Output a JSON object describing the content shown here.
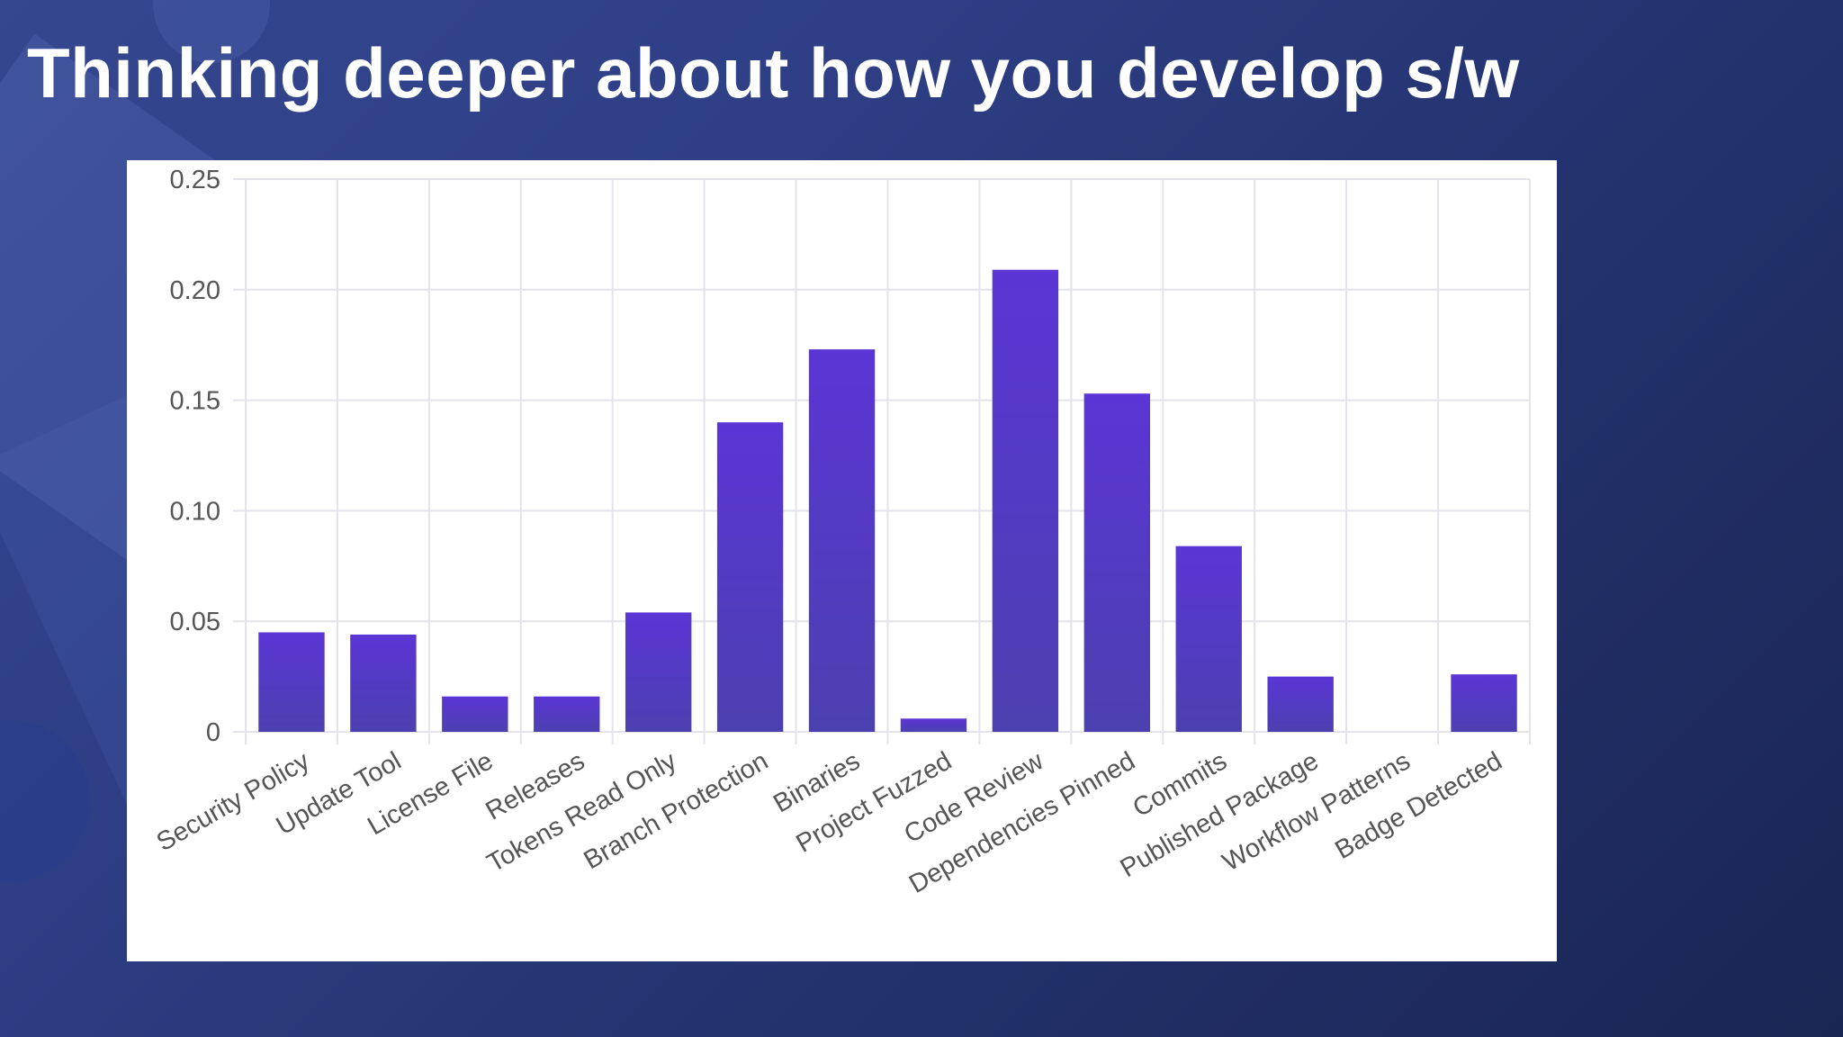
{
  "slide": {
    "title": "Thinking deeper about how you develop s/w"
  },
  "chart_data": {
    "type": "bar",
    "title": "",
    "xlabel": "",
    "ylabel": "",
    "ylim": [
      0,
      0.25
    ],
    "yticks": [
      "0",
      "0.05",
      "0.10",
      "0.15",
      "0.20",
      "0.25"
    ],
    "ytick_values": [
      0,
      0.05,
      0.1,
      0.15,
      0.2,
      0.25
    ],
    "grid": true,
    "categories": [
      "Security Policy",
      "Update Tool",
      "License File",
      "Releases",
      "Tokens Read Only",
      "Branch Protection",
      "Binaries",
      "Project Fuzzed",
      "Code Review",
      "Dependencies Pinned",
      "Commits",
      "Published Package",
      "Workflow Patterns",
      "Badge Detected"
    ],
    "values": [
      0.045,
      0.044,
      0.016,
      0.016,
      0.054,
      0.14,
      0.173,
      0.006,
      0.209,
      0.153,
      0.084,
      0.025,
      0,
      0.026
    ],
    "colors": {
      "bar_top": "#5b35d5",
      "bar_bottom": "#4c40b0",
      "grid": "#e4e2ea",
      "tick_text": "#555555"
    }
  }
}
